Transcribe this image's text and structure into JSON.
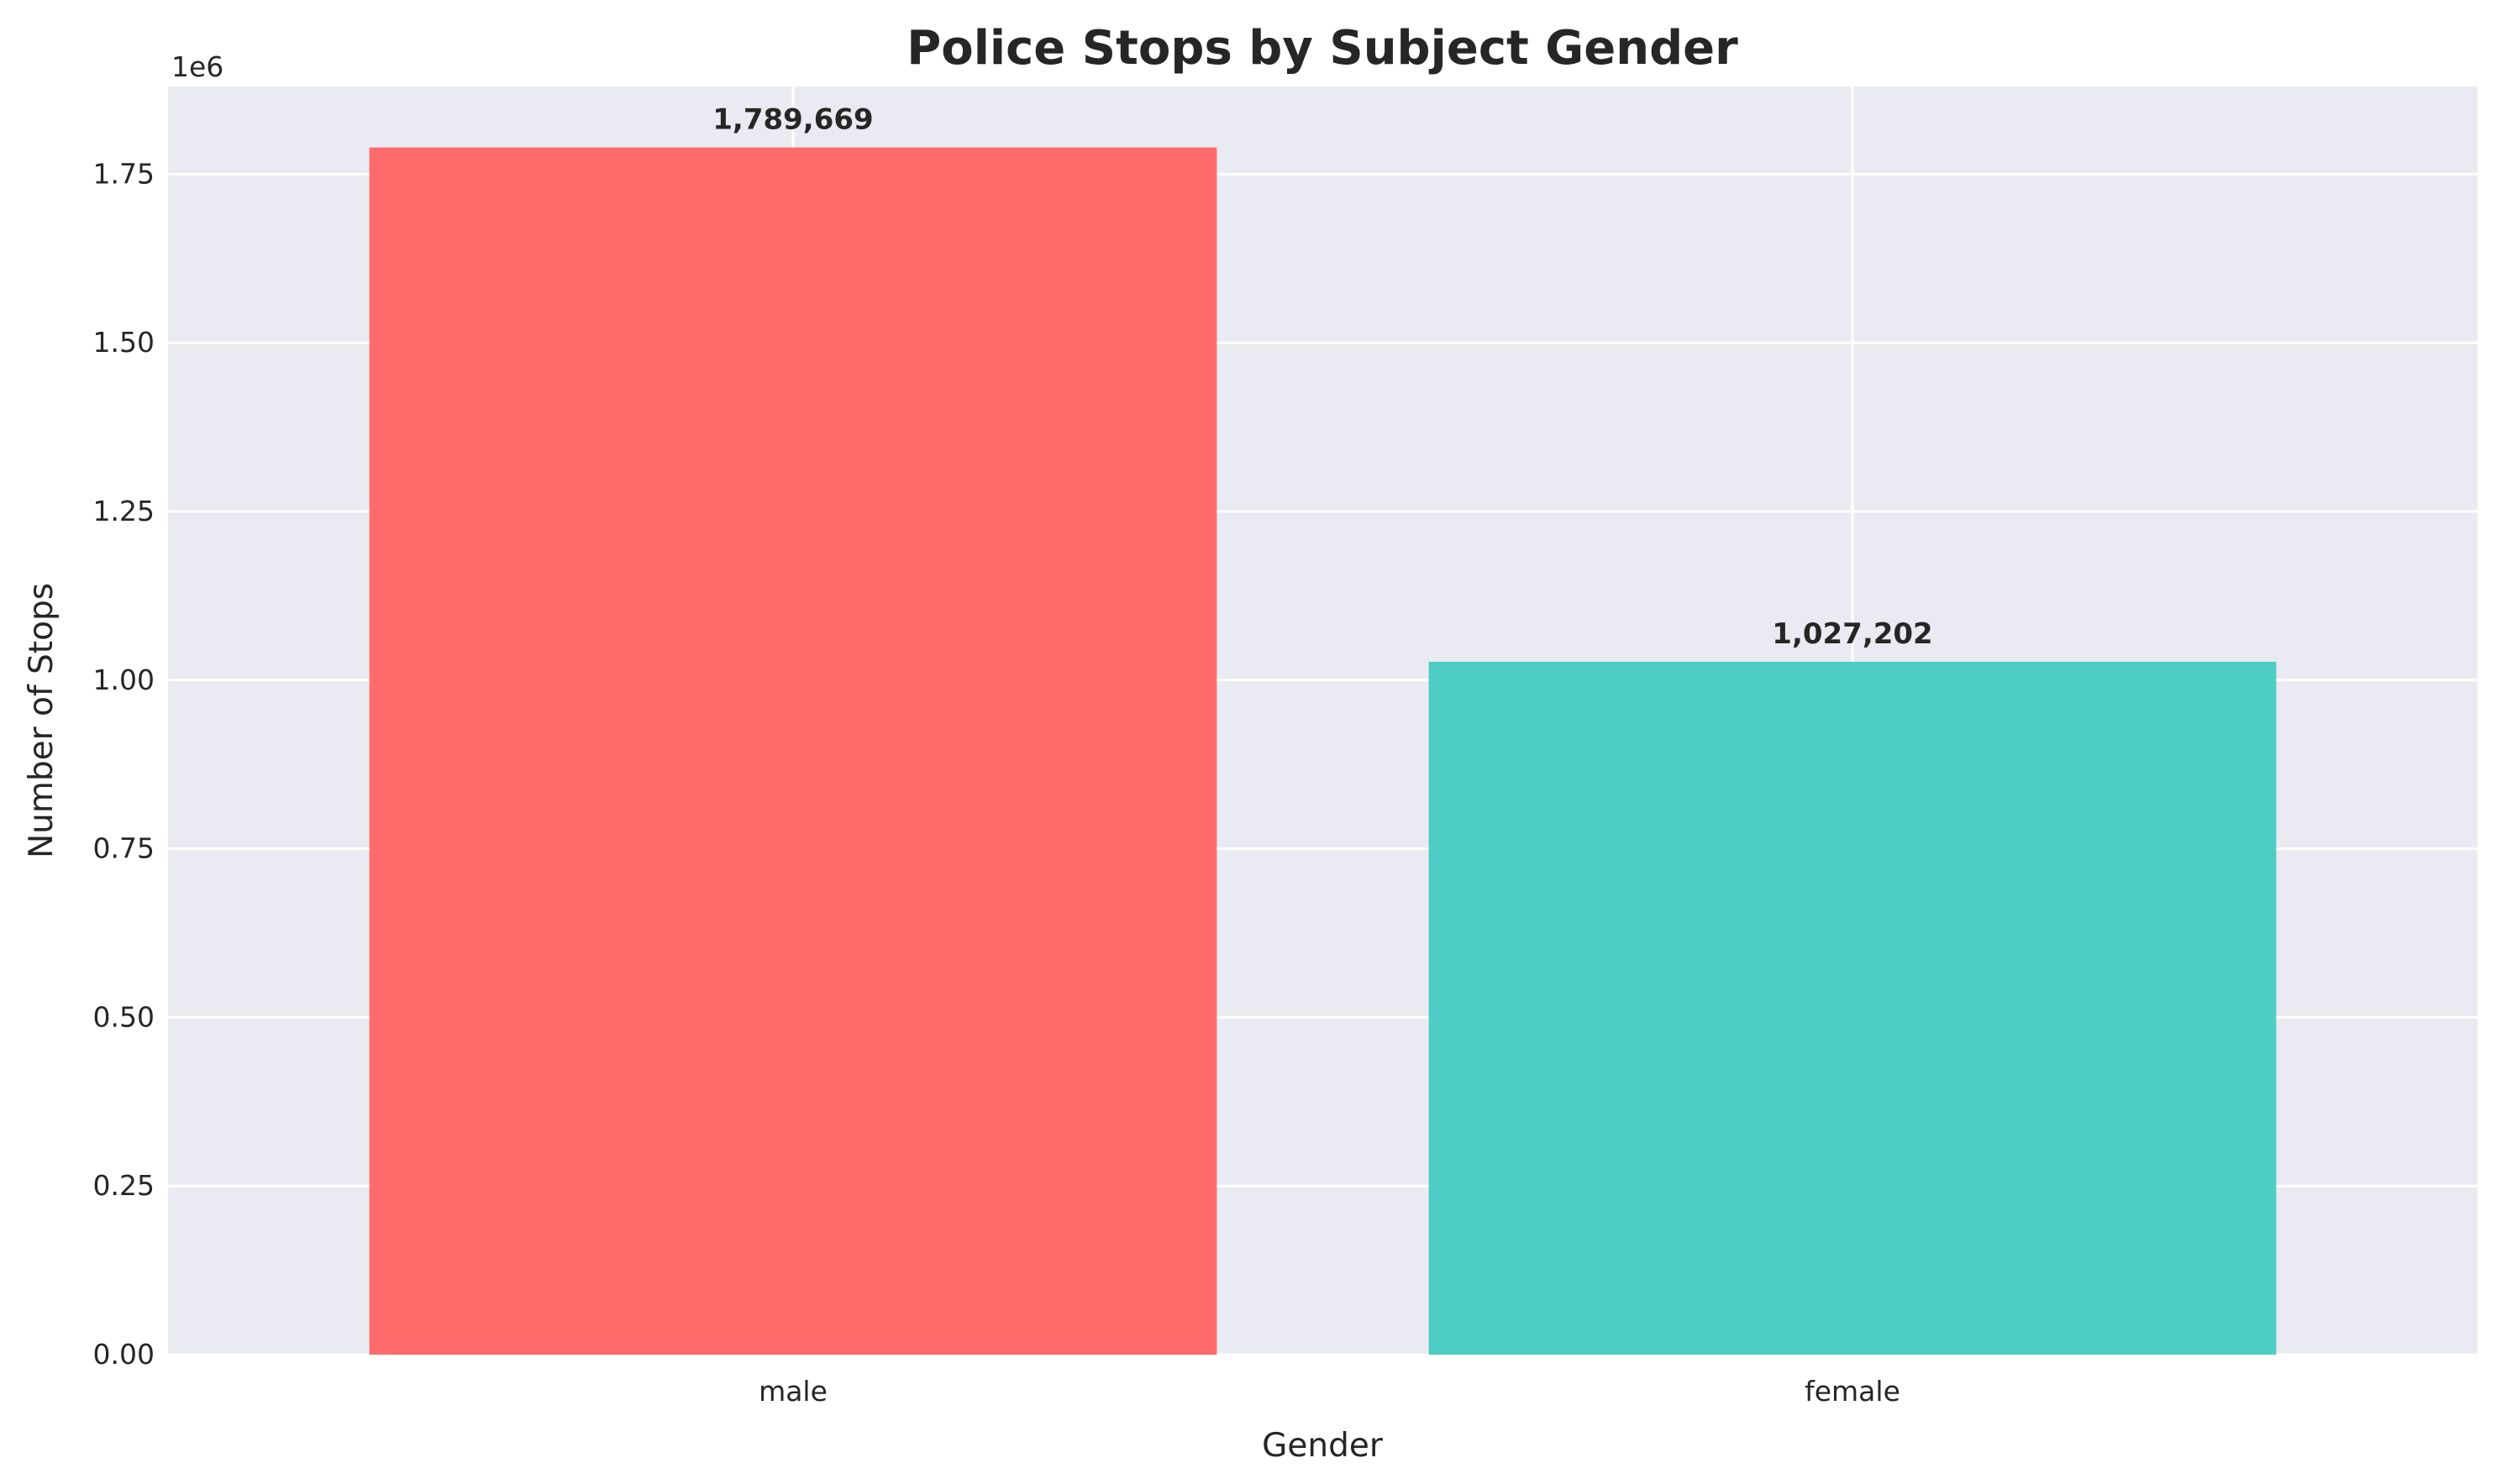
{
  "chart_data": {
    "type": "bar",
    "title": "Police Stops by Subject Gender",
    "xlabel": "Gender",
    "ylabel": "Number of Stops",
    "y_offset_label": "1e6",
    "categories": [
      "male",
      "female"
    ],
    "values": [
      1789669,
      1027202
    ],
    "data_labels": [
      "1,789,669",
      "1,027,202"
    ],
    "colors": [
      "#ff6b6b",
      "#4ecdc4"
    ],
    "ylim": [
      0,
      1880000
    ],
    "yticks": [
      0,
      250000,
      500000,
      750000,
      1000000,
      1250000,
      1500000,
      1750000
    ],
    "ytick_labels": [
      "0.00",
      "0.25",
      "0.50",
      "0.75",
      "1.00",
      "1.25",
      "1.50",
      "1.75"
    ],
    "grid": true,
    "background": "#eaeaf2"
  }
}
